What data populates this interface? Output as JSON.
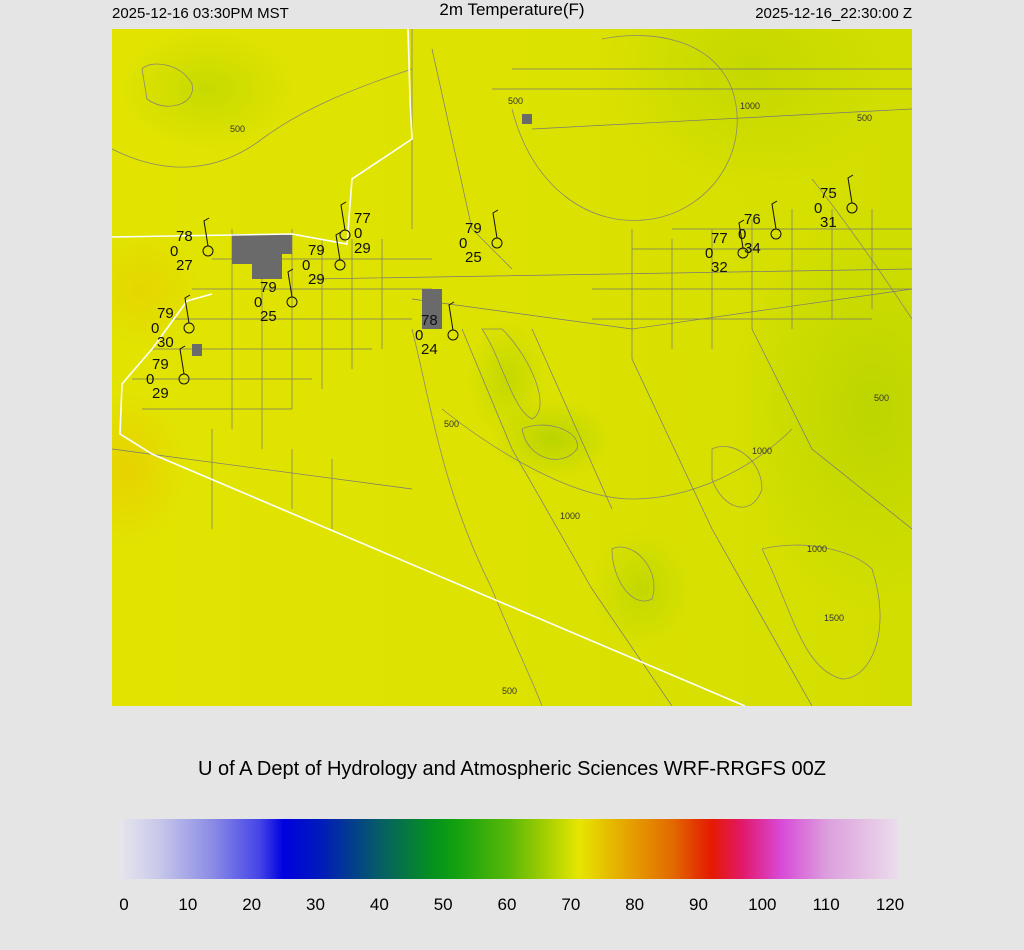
{
  "header": {
    "local_time": "2025-12-16 03:30PM MST",
    "title": "2m Temperature(F)",
    "valid_time": "2025-12-16_22:30:00 Z"
  },
  "map": {
    "contour_labels": [
      "500",
      "500",
      "1000",
      "500",
      "500",
      "500",
      "1000",
      "1000",
      "1000",
      "1500",
      "500"
    ],
    "stations": [
      {
        "temp": "78",
        "code": "0",
        "dew": "27"
      },
      {
        "temp": "79",
        "code": "0",
        "dew": "25"
      },
      {
        "temp": "79",
        "code": "0",
        "dew": "30"
      },
      {
        "temp": "79",
        "code": "0",
        "dew": "29"
      },
      {
        "temp": "77",
        "code": "0",
        "dew": "29"
      },
      {
        "temp": "79",
        "code": "0",
        "dew": "29"
      },
      {
        "temp": "79",
        "code": "0",
        "dew": "25"
      },
      {
        "temp": "78",
        "code": "0",
        "dew": "24"
      },
      {
        "temp": "77",
        "code": "0",
        "dew": "32"
      },
      {
        "temp": "76",
        "code": "0",
        "dew": "34"
      },
      {
        "temp": "75",
        "code": "0",
        "dew": "31"
      }
    ]
  },
  "credit": "U of A Dept of Hydrology and Atmospheric Sciences WRF-RRGFS 00Z",
  "colorbar": {
    "ticks": [
      "0",
      "10",
      "20",
      "30",
      "40",
      "50",
      "60",
      "70",
      "80",
      "90",
      "100",
      "110",
      "120"
    ],
    "min": 0,
    "max": 120
  }
}
